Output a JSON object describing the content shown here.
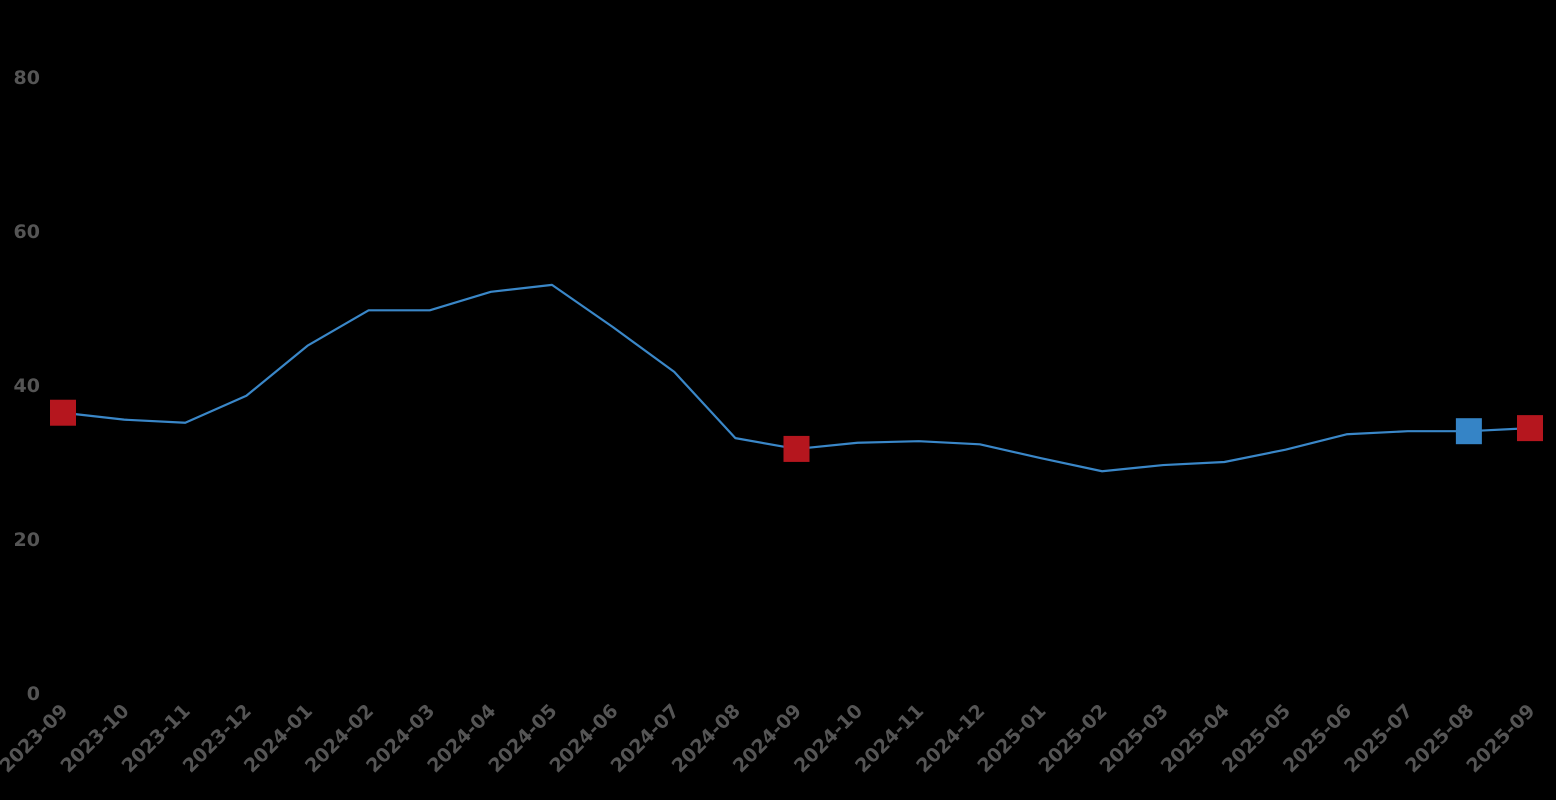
{
  "chart_data": {
    "type": "line",
    "title": "",
    "xlabel": "",
    "ylabel": "",
    "ylim": [
      0,
      80
    ],
    "yticks": [
      "0",
      "20",
      "40",
      "60",
      "80"
    ],
    "grid": false,
    "background": "#000000",
    "line_color": "#3a87c8",
    "categories": [
      "2023-09",
      "2023-10",
      "2023-11",
      "2023-12",
      "2024-01",
      "2024-02",
      "2024-03",
      "2024-04",
      "2024-05",
      "2024-06",
      "2024-07",
      "2024-08",
      "2024-09",
      "2024-10",
      "2024-11",
      "2024-12",
      "2025-01",
      "2025-02",
      "2025-03",
      "2025-04",
      "2025-05",
      "2025-06",
      "2025-07",
      "2025-08",
      "2025-09"
    ],
    "series": [
      {
        "values": [
          36.4,
          35.5,
          35.1,
          38.6,
          45.1,
          49.7,
          49.7,
          52.1,
          53.0,
          47.5,
          41.7,
          33.1,
          31.7,
          32.5,
          32.7,
          32.3,
          30.5,
          28.8,
          29.6,
          30.0,
          31.6,
          33.6,
          34.0,
          34.0,
          34.4
        ]
      }
    ],
    "markers": [
      {
        "category": "2023-09",
        "value": 36.4,
        "color": "#b5161e"
      },
      {
        "category": "2024-09",
        "value": 31.7,
        "color": "#b5161e"
      },
      {
        "category": "2025-08",
        "value": 34.0,
        "color": "#3584c6"
      },
      {
        "category": "2025-09",
        "value": 34.4,
        "color": "#b5161e"
      }
    ]
  }
}
